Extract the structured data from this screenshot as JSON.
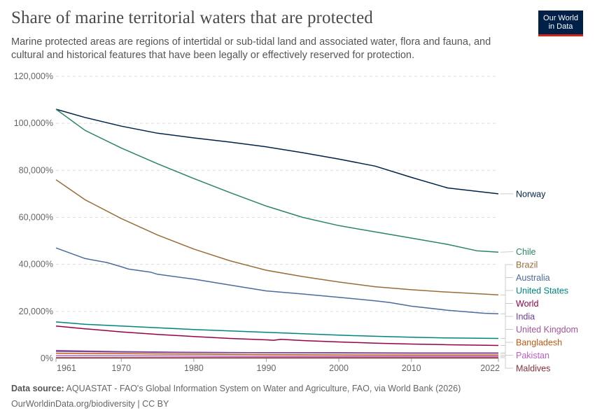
{
  "header": {
    "title": "Share of marine territorial waters that are protected",
    "subtitle": "Marine protected areas are regions of intertidal or sub-tidal land and associated water, flora and fauna, and cultural and historical features that have been legally or effectively reserved for protection."
  },
  "logo": {
    "line1": "Our World",
    "line2": "in Data",
    "bg_color": "#002147",
    "accent_color": "#ce261e"
  },
  "footer": {
    "source_label": "Data source:",
    "source_text": "AQUASTAT - FAO's Global Information System on Water and Agriculture, FAO, via World Bank (2026)",
    "site": "OurWorldinData.org/biodiversity",
    "separator": " | ",
    "license": "CC BY"
  },
  "chart_data": {
    "type": "line",
    "xlim": [
      1961,
      2022
    ],
    "ylim": [
      0,
      120000
    ],
    "grid": true,
    "gridline_style": "dashed",
    "legend_placement": "right-end-labels",
    "x_ticks": [
      {
        "value": 1961,
        "label": "1961"
      },
      {
        "value": 1970,
        "label": "1970"
      },
      {
        "value": 1980,
        "label": "1980"
      },
      {
        "value": 1990,
        "label": "1990"
      },
      {
        "value": 2000,
        "label": "2000"
      },
      {
        "value": 2010,
        "label": "2010"
      },
      {
        "value": 2022,
        "label": "2022"
      }
    ],
    "y_ticks": [
      {
        "value": 0,
        "label": "0%"
      },
      {
        "value": 20000,
        "label": "20,000%"
      },
      {
        "value": 40000,
        "label": "40,000%"
      },
      {
        "value": 60000,
        "label": "60,000%"
      },
      {
        "value": 80000,
        "label": "80,000%"
      },
      {
        "value": 100000,
        "label": "100,000%"
      },
      {
        "value": 120000,
        "label": "120,000%"
      }
    ],
    "series": [
      {
        "name": "Norway",
        "color": "#002147",
        "x": [
          1961,
          1965,
          1970,
          1975,
          1980,
          1985,
          1990,
          1995,
          2000,
          2005,
          2010,
          2015,
          2022
        ],
        "y": [
          106000,
          102500,
          98800,
          95800,
          93800,
          92000,
          90000,
          87500,
          84800,
          81800,
          77000,
          72500,
          70000
        ]
      },
      {
        "name": "Chile",
        "color": "#2c8465",
        "x": [
          1961,
          1965,
          1970,
          1975,
          1980,
          1985,
          1990,
          1995,
          2000,
          2005,
          2010,
          2015,
          2019,
          2022
        ],
        "y": [
          106000,
          97000,
          89500,
          82800,
          76500,
          70500,
          64800,
          60000,
          56500,
          53800,
          51200,
          48500,
          45800,
          45200
        ]
      },
      {
        "name": "Brazil",
        "color": "#996d39",
        "x": [
          1961,
          1965,
          1970,
          1975,
          1980,
          1985,
          1990,
          1995,
          2000,
          2005,
          2010,
          2015,
          2022
        ],
        "y": [
          76000,
          67500,
          59500,
          52500,
          46500,
          41500,
          37500,
          34800,
          32500,
          30500,
          29200,
          28200,
          27000
        ]
      },
      {
        "name": "Australia",
        "color": "#4c6a9c",
        "x": [
          1961,
          1965,
          1968,
          1970,
          1971,
          1974,
          1975,
          1980,
          1985,
          1990,
          1995,
          2000,
          2005,
          2007,
          2010,
          2015,
          2020,
          2022
        ],
        "y": [
          47000,
          42500,
          40800,
          39000,
          38000,
          36700,
          35800,
          33700,
          31200,
          28700,
          27400,
          26000,
          24500,
          23800,
          22200,
          20500,
          19200,
          19000
        ]
      },
      {
        "name": "United States",
        "color": "#00847e",
        "x": [
          1961,
          1965,
          1970,
          1975,
          1980,
          1985,
          1990,
          1995,
          2000,
          2005,
          2010,
          2015,
          2022
        ],
        "y": [
          15500,
          14500,
          13800,
          13000,
          12300,
          11700,
          11100,
          10500,
          9900,
          9400,
          9000,
          8700,
          8500
        ]
      },
      {
        "name": "World",
        "color": "#970046",
        "x": [
          1961,
          1965,
          1970,
          1975,
          1980,
          1985,
          1990,
          1991,
          1992,
          1995,
          2000,
          2005,
          2010,
          2015,
          2022
        ],
        "y": [
          13800,
          12600,
          11300,
          10200,
          9300,
          8500,
          7900,
          7700,
          8100,
          7600,
          7000,
          6500,
          6100,
          5800,
          5500
        ]
      },
      {
        "name": "United Kingdom",
        "color": "#a2559c",
        "x": [
          1961,
          1970,
          1980,
          1990,
          2000,
          2010,
          2022
        ],
        "y": [
          3400,
          2900,
          2600,
          2400,
          2300,
          2200,
          2200
        ]
      },
      {
        "name": "India",
        "color": "#6d3e91",
        "x": [
          1961,
          1970,
          1980,
          1990,
          2000,
          2010,
          2022
        ],
        "y": [
          3000,
          2700,
          2500,
          2400,
          2400,
          2300,
          2300
        ]
      },
      {
        "name": "Bangladesh",
        "color": "#be5915",
        "x": [
          1961,
          1970,
          1980,
          1990,
          2000,
          2010,
          2022
        ],
        "y": [
          2200,
          2000,
          1800,
          1600,
          1500,
          1400,
          1400
        ]
      },
      {
        "name": "Pakistan",
        "color": "#c05ec4",
        "x": [
          1961,
          1970,
          1980,
          1990,
          2000,
          2010,
          2022
        ],
        "y": [
          1200,
          1100,
          1000,
          900,
          800,
          800,
          800
        ]
      },
      {
        "name": "Maldives",
        "color": "#883039",
        "x": [
          1961,
          1970,
          1980,
          1990,
          2000,
          2010,
          2022
        ],
        "y": [
          300,
          300,
          300,
          300,
          300,
          300,
          300
        ]
      }
    ]
  }
}
